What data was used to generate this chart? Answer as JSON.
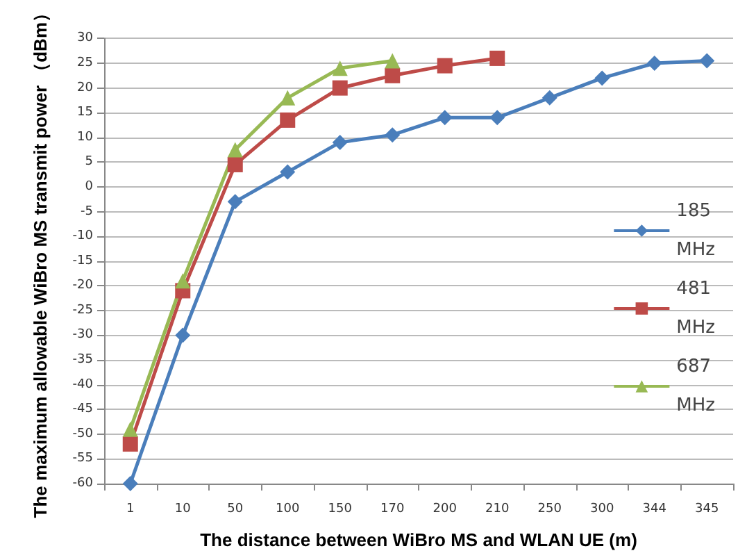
{
  "chart_data": {
    "type": "line",
    "xlabel": "The distance between WiBro MS and WLAN UE (m)",
    "ylabel": "The maximum allowable WiBro MS transmit power （dBm）",
    "categories": [
      "1",
      "10",
      "50",
      "100",
      "150",
      "170",
      "200",
      "210",
      "250",
      "300",
      "344",
      "345"
    ],
    "series": [
      {
        "name": "185 MHz",
        "color": "#4a7ebb",
        "marker": "diamond",
        "values": [
          -60,
          -30,
          -3,
          3,
          9,
          10.5,
          14,
          14,
          18,
          22,
          25,
          25.5
        ]
      },
      {
        "name": "481 MHz",
        "color": "#be4b48",
        "marker": "square",
        "values": [
          -52,
          -21,
          4.5,
          13.5,
          20,
          22.5,
          24.5,
          26,
          null,
          null,
          null,
          null
        ]
      },
      {
        "name": "687 MHz",
        "color": "#98b954",
        "marker": "triangle",
        "values": [
          -49,
          -19,
          7.5,
          18,
          24,
          25.5,
          null,
          null,
          null,
          null,
          null,
          null
        ]
      }
    ],
    "ylim": [
      -60,
      30
    ],
    "yticks": [
      -60,
      -55,
      -50,
      -45,
      -40,
      -35,
      -30,
      -25,
      -20,
      -15,
      -10,
      -5,
      0,
      5,
      10,
      15,
      20,
      25,
      30
    ],
    "grid": "y",
    "legend": "right"
  }
}
